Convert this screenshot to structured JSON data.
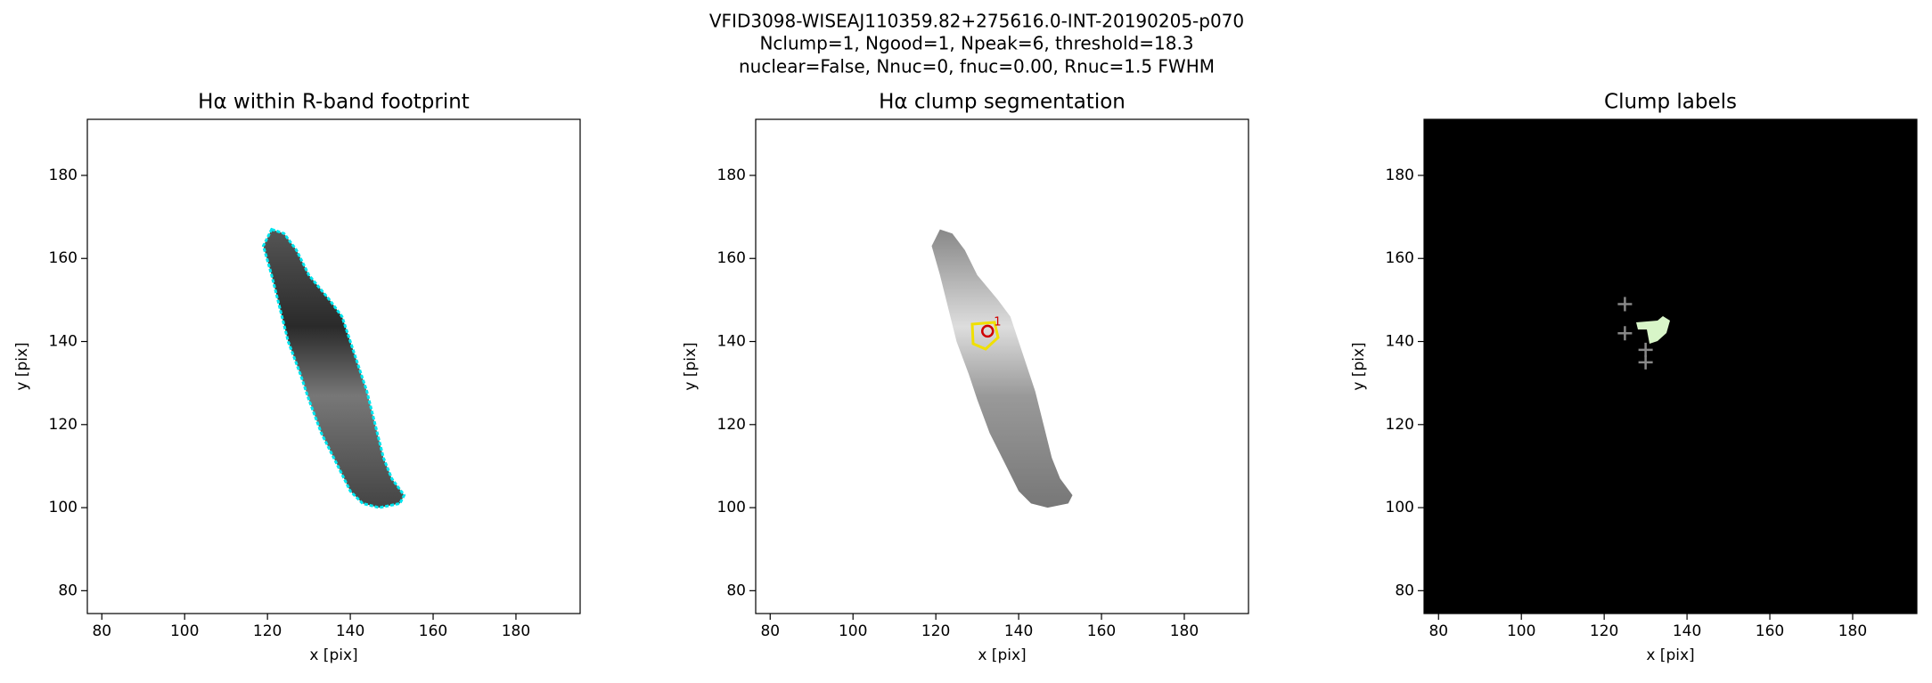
{
  "title": [
    "VFID3098-WISEAJ110359.82+275616.0-INT-20190205-p070",
    "Nclump=1, Ngood=1, Npeak=6, threshold=18.3",
    "nuclear=False, Nnuc=0, fnuc=0.00, Rnuc=1.5 FWHM"
  ],
  "chart_data": [
    {
      "type": "image",
      "title": "Hα within R-band footprint",
      "xlabel": "x [pix]",
      "ylabel": "y [pix]",
      "xlim": [
        76.5,
        195.5
      ],
      "ylim": [
        74.5,
        193.5
      ],
      "xticks": [
        80,
        100,
        120,
        140,
        160,
        180
      ],
      "yticks": [
        80,
        100,
        120,
        140,
        160,
        180
      ]
    },
    {
      "type": "image",
      "title": "Hα clump segmentation",
      "xlabel": "x [pix]",
      "ylabel": "y [pix]",
      "xlim": [
        76.5,
        195.5
      ],
      "ylim": [
        74.5,
        193.5
      ],
      "xticks": [
        80,
        100,
        120,
        140,
        160,
        180
      ],
      "yticks": [
        80,
        100,
        120,
        140,
        160,
        180
      ],
      "markers": {
        "x": [
          132.5
        ],
        "y": [
          142.5
        ],
        "labels": [
          "1"
        ],
        "color": "#d00000"
      }
    },
    {
      "type": "image",
      "title": "Clump labels",
      "xlabel": "x [pix]",
      "ylabel": "y [pix]",
      "xlim": [
        76.5,
        195.5
      ],
      "ylim": [
        74.5,
        193.5
      ],
      "xticks": [
        80,
        100,
        120,
        140,
        160,
        180
      ],
      "yticks": [
        80,
        100,
        120,
        140,
        160,
        180
      ],
      "peaks": {
        "x": [
          125,
          125,
          130,
          130
        ],
        "y": [
          149,
          142,
          138,
          135
        ],
        "color": "#888888"
      }
    }
  ]
}
